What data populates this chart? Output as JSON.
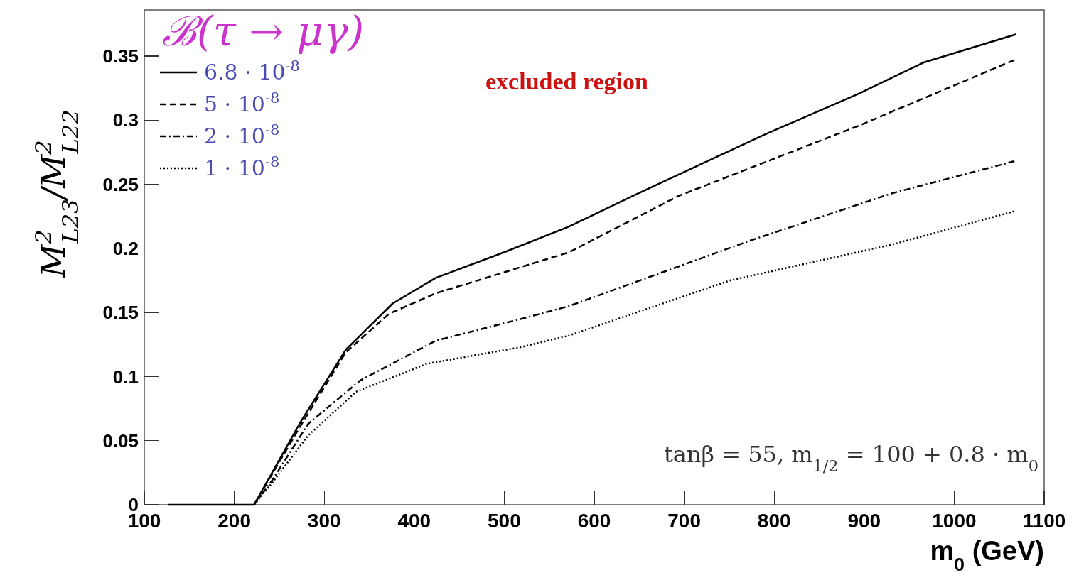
{
  "chart_data": {
    "type": "line",
    "title": "ℬ(τ → μγ)",
    "xlabel": "m$_{0}$ (GeV)",
    "ylabel": "M$^{2}$$_{L23}$/M$^{2}$$_{L22}$",
    "annotations": [
      "excluded region",
      "tanβ = 55, m$_{1/2}$ = 100 + 0.8 · m$_{0}$"
    ],
    "xlim": [
      100,
      1100
    ],
    "ylim": [
      0,
      0.386
    ],
    "xticks": [
      100,
      200,
      300,
      400,
      500,
      600,
      700,
      800,
      900,
      1000,
      1100
    ],
    "yticks": [
      0,
      0.05,
      0.1,
      0.15,
      0.2,
      0.25,
      0.3,
      0.35
    ],
    "grid": false,
    "legend": "top left",
    "series": [
      {
        "name": "6.8 · 10$^{-8}$",
        "color": "#000000",
        "line_style": "solid",
        "x": [
          126,
          222,
          274,
          324,
          376,
          424,
          500,
          572,
          643,
          787,
          895,
          966,
          1069
        ],
        "values": [
          0,
          0,
          0.065,
          0.121,
          0.157,
          0.177,
          0.197,
          0.217,
          0.241,
          0.288,
          0.321,
          0.345,
          0.367
        ]
      },
      {
        "name": "5 · 10$^{-8}$",
        "color": "#000000",
        "line_style": "dashed",
        "x": [
          222,
          274,
          324,
          372,
          424,
          466,
          572,
          694,
          895,
          1067
        ],
        "values": [
          0,
          0.062,
          0.119,
          0.149,
          0.165,
          0.174,
          0.197,
          0.241,
          0.296,
          0.347
        ]
      },
      {
        "name": "2 · 10$^{-8}$",
        "color": "#000000",
        "line_style": "dashdot",
        "x": [
          222,
          242,
          282,
          340,
          424,
          519,
          572,
          773,
          931,
          1067
        ],
        "values": [
          0,
          0.019,
          0.063,
          0.097,
          0.128,
          0.145,
          0.155,
          0.206,
          0.243,
          0.268
        ]
      },
      {
        "name": "1 · 10$^{-8}$",
        "color": "#000000",
        "line_style": "dotted",
        "x": [
          222,
          242,
          282,
          335,
          414,
          519,
          572,
          751,
          931,
          1067
        ],
        "values": [
          0,
          0.017,
          0.054,
          0.088,
          0.11,
          0.123,
          0.132,
          0.175,
          0.203,
          0.229
        ]
      }
    ]
  }
}
